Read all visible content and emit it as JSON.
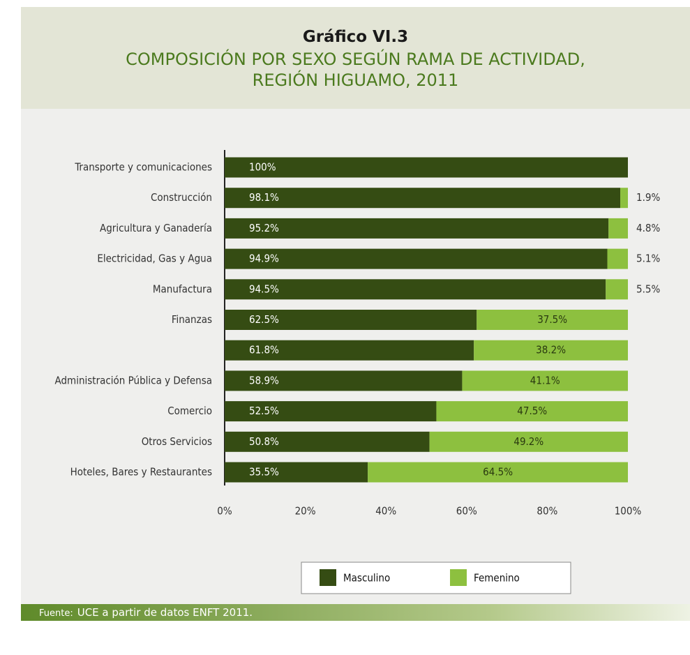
{
  "header": {
    "kicker": "Gráfico VI.3",
    "title": "COMPOSICIÓN POR SEXO SEGÚN RAMA DE ACTIVIDAD, REGIÓN HIGUAMO, 2011"
  },
  "chart_data": {
    "type": "stacked_barh",
    "categories": [
      "Transporte y comunicaciones",
      "Construcción",
      "Agricultura y Ganadería",
      "Electricidad, Gas y Agua",
      "Manufactura",
      "Finanzas",
      null,
      "Administración Pública y Defensa",
      "Comercio",
      "Otros Servicios",
      "Hoteles, Bares y Restaurantes"
    ],
    "series": [
      {
        "name": "Masculino",
        "color": "#354c13",
        "values": [
          100,
          98.1,
          95.2,
          94.9,
          94.5,
          62.5,
          61.8,
          58.9,
          52.5,
          50.8,
          35.5
        ],
        "value_labels": [
          "100%",
          "98.1%",
          "95.2%",
          "94.9%",
          "94.5%",
          "62.5%",
          "61.8%",
          "58.9%",
          "52.5%",
          "50.8%",
          "35.5%"
        ]
      },
      {
        "name": "Femenino",
        "color": "#8dc03f",
        "values": [
          null,
          1.9,
          4.8,
          5.1,
          5.5,
          37.5,
          38.2,
          41.1,
          47.5,
          49.2,
          64.5
        ],
        "value_labels": [
          null,
          "1.9%",
          "4.8%",
          "5.1%",
          "5.5%",
          "37.5%",
          "38.2%",
          "41.1%",
          "47.5%",
          "49.2%",
          "64.5%"
        ]
      }
    ],
    "xlim": [
      0,
      100
    ],
    "xticks": [
      {
        "value": 0,
        "label": "0%"
      },
      {
        "value": 20,
        "label": "20%"
      },
      {
        "value": 40,
        "label": "40%"
      },
      {
        "value": 60,
        "label": "60%"
      },
      {
        "value": 80,
        "label": "80%"
      },
      {
        "value": 100,
        "label": "100%"
      }
    ],
    "legend": "bottom"
  },
  "footer": {
    "source_label": "Fuente:",
    "source": "UCE a partir de datos ENFT 2011."
  }
}
